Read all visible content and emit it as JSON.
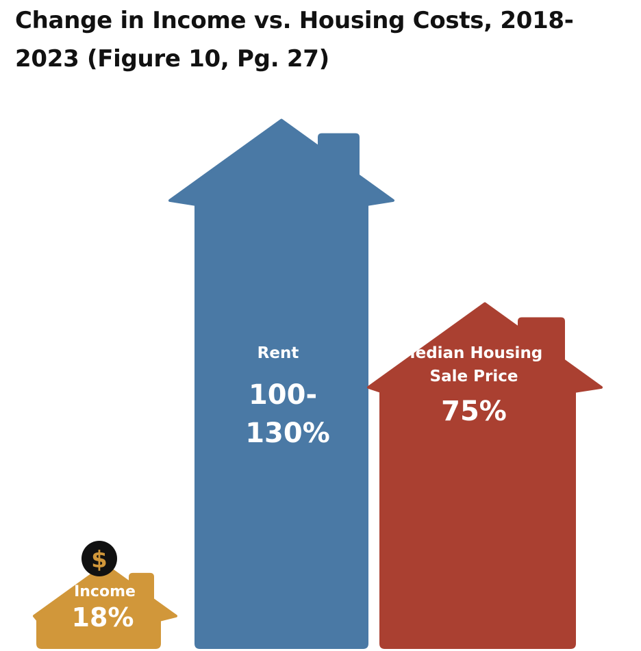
{
  "chart_data": {
    "type": "bar",
    "title": "Change in Income vs. Housing Costs, 2018-2023 (Figure 10, Pg. 27)",
    "categories": [
      "Income",
      "Rent",
      "Median Housing Sale Price"
    ],
    "value_labels": [
      "18%",
      "100-130%",
      "75%"
    ],
    "values": [
      18,
      115,
      75
    ],
    "ranges": [
      [
        18,
        18
      ],
      [
        100,
        130
      ],
      [
        75,
        75
      ]
    ],
    "label_lines": [
      [
        "Income"
      ],
      [
        "Rent"
      ],
      [
        "Median Housing",
        "Sale Price"
      ]
    ],
    "value_lines": [
      [
        "18%"
      ],
      [
        "100-",
        "130%"
      ],
      [
        "75%"
      ]
    ],
    "icons": [
      "dollar-coin-icon",
      "",
      ""
    ],
    "icon_symbol": "$",
    "colors": [
      "#D1973A",
      "#4A79A5",
      "#AA4031"
    ]
  }
}
